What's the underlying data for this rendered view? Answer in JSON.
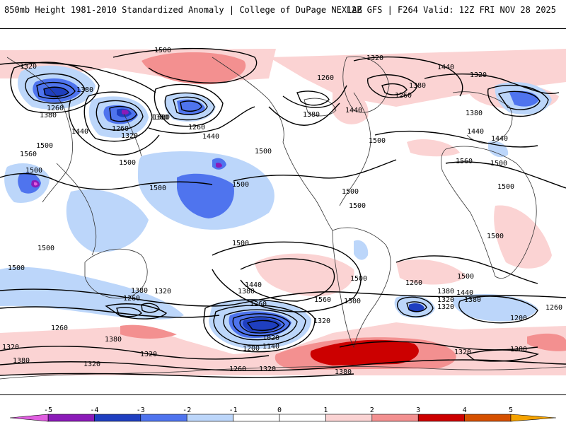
{
  "header": {
    "left_title": "850mb Height 1981-2010 Standardized Anomaly | College of DuPage NEXLAB",
    "right_title": "12Z GFS | F264 Valid: 12Z FRI NOV 28 2025"
  },
  "colors": {
    "neg5": "#e05ee0",
    "neg4": "#8b1bb8",
    "neg3": "#1f3fc0",
    "neg2": "#4f74ee",
    "neg1": "#bcd6fa",
    "zero": "#ffffff",
    "pos1": "#fbd3d3",
    "pos2": "#f39090",
    "pos3": "#cc0000",
    "pos4": "#d55000",
    "pos5": "#f5a300"
  },
  "colorbar": {
    "ticks": [
      "-5",
      "-4",
      "-3",
      "-2",
      "-1",
      "0",
      "1",
      "2",
      "3",
      "4",
      "5"
    ]
  },
  "contour_labels": [
    "1500",
    "1320",
    "1380",
    "1260",
    "1380",
    "1380",
    "1260",
    "1320",
    "1440",
    "1560",
    "1500",
    "1500",
    "1500",
    "1380",
    "1260",
    "1440",
    "1500",
    "1500",
    "1500",
    "1500",
    "1500",
    "1500",
    "1320",
    "1440",
    "1380",
    "1260",
    "1380",
    "1440",
    "1320",
    "1440",
    "1260",
    "1500",
    "1500",
    "1560",
    "1500",
    "1500",
    "1500",
    "1440",
    "1380",
    "1260",
    "1380",
    "1320",
    "1440",
    "1380",
    "1260",
    "1320",
    "1560",
    "1500",
    "1500",
    "1440",
    "1380",
    "1320",
    "1260",
    "1200",
    "1260",
    "1380",
    "1320",
    "1020",
    "1140",
    "1200",
    "1320",
    "1380",
    "1260",
    "1320",
    "1380",
    "1320",
    "1380",
    "1500",
    "1320",
    "1380",
    "1320",
    "1260",
    "1500"
  ],
  "contour_label_alt": "850mb geopotential height contours (m)"
}
